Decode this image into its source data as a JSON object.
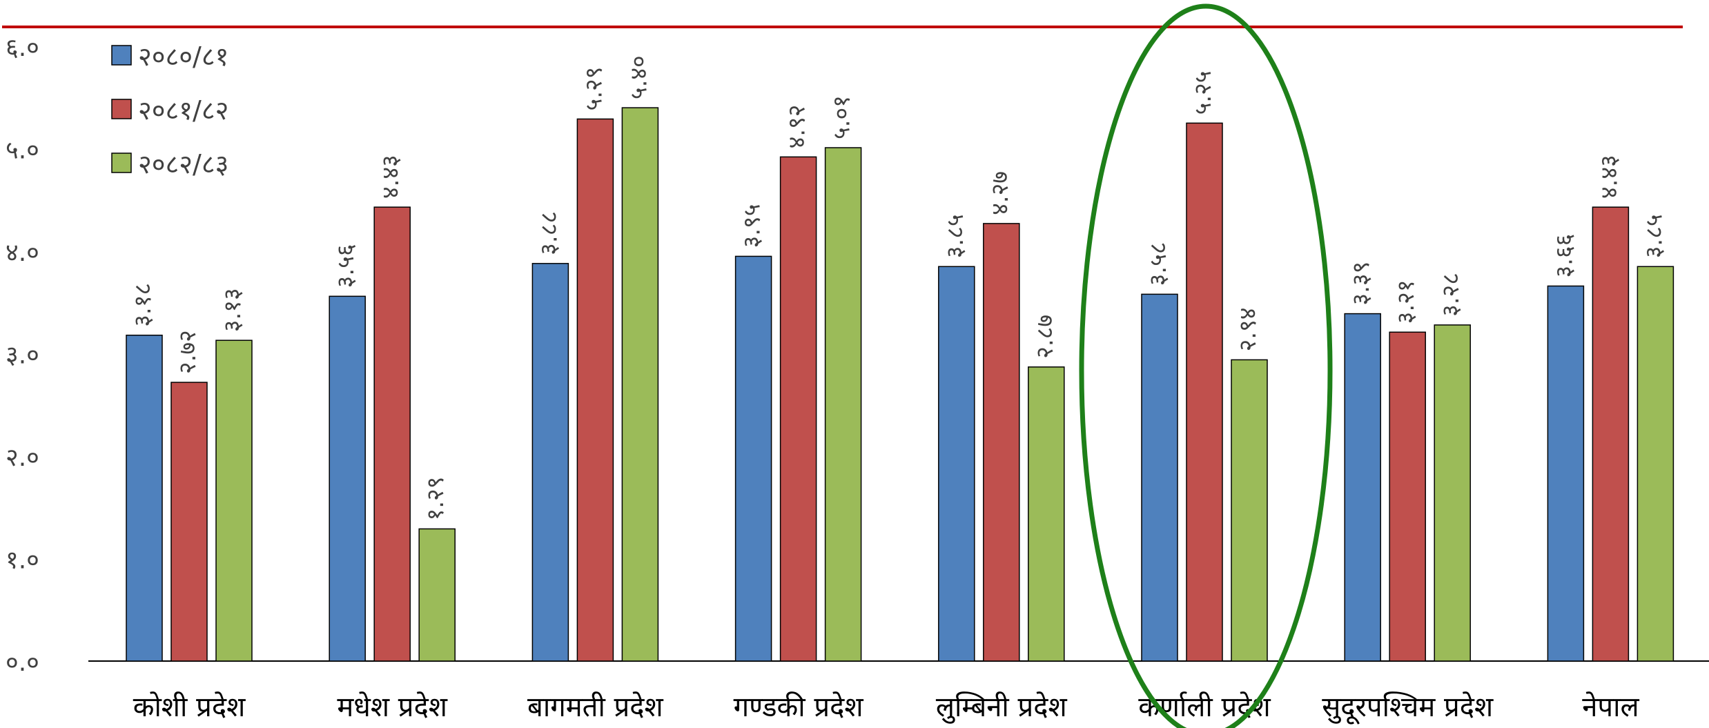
{
  "chart_data": {
    "type": "bar",
    "categories": [
      "कोशी प्रदेश",
      "मधेश प्रदेश",
      "बागमती प्रदेश",
      "गण्डकी प्रदेश",
      "लुम्बिनी प्रदेश",
      "कर्णाली प्रदेश",
      "सुदूरपश्चिम प्रदेश",
      "नेपाल"
    ],
    "series": [
      {
        "name": "२०८०/८१",
        "color": "#4f81bd",
        "values": [
          3.18,
          3.56,
          3.88,
          3.95,
          3.85,
          3.58,
          3.39,
          3.66
        ],
        "labels": [
          "३.१८",
          "३.५६",
          "३.८८",
          "३.९५",
          "३.८५",
          "३.५८",
          "३.३९",
          "३.६६"
        ]
      },
      {
        "name": "२०८१/८२",
        "color": "#c0504d",
        "values": [
          2.72,
          4.43,
          5.29,
          4.92,
          4.27,
          5.25,
          3.21,
          4.43
        ],
        "labels": [
          "२.७२",
          "४.४३",
          "५.२९",
          "४.९२",
          "४.२७",
          "५.२५",
          "३.२१",
          "४.४३"
        ]
      },
      {
        "name": "२०८२/८३",
        "color": "#9bbb59",
        "values": [
          3.13,
          1.29,
          5.4,
          5.01,
          2.87,
          2.94,
          3.28,
          3.85
        ],
        "labels": [
          "३.१३",
          "१.२९",
          "५.४०",
          "५.०१",
          "२.८७",
          "२.९४",
          "३.२८",
          "३.८५"
        ]
      }
    ],
    "yticks": [
      "०.०",
      "१.०",
      "२.०",
      "३.०",
      "४.०",
      "५.०",
      "६.०"
    ],
    "ylim": [
      0,
      6
    ],
    "legend_position": "top-left",
    "highlight_category": "कर्णाली प्रदेश",
    "highlight_color": "#1e8019",
    "top_rule_color": "#c00000"
  }
}
